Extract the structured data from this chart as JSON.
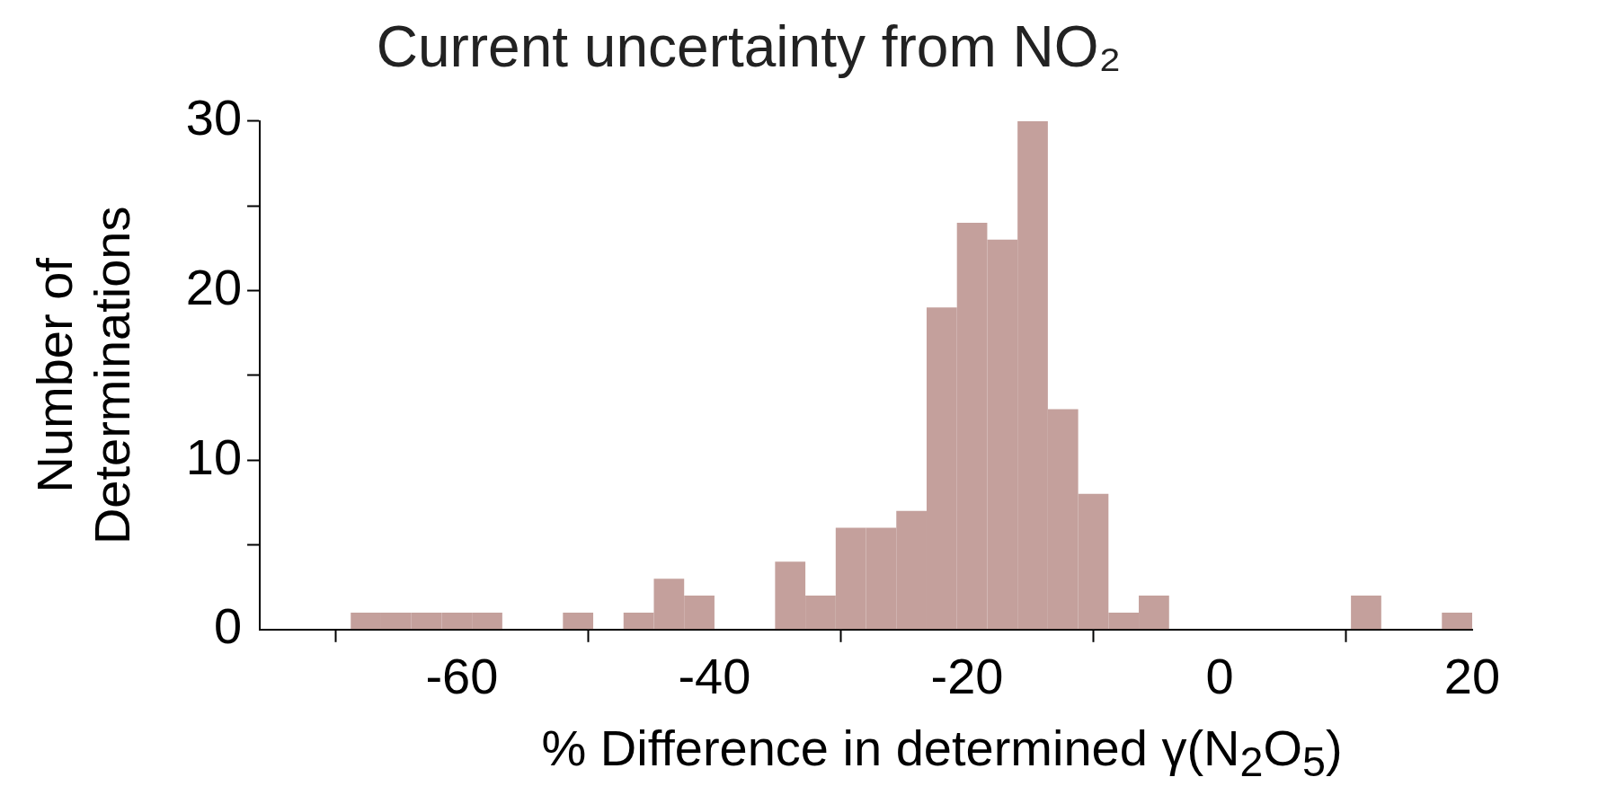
{
  "chart_data": {
    "type": "histogram",
    "title": "Current uncertainty from NO₂",
    "xlabel": "% Difference in determined γ(N$_{2}$O$_{5}$)",
    "ylabel": "Number of\nDeterminations",
    "bins": [
      -76,
      -73.6,
      -71.2,
      -68.8,
      -66.4,
      -64,
      -61.6,
      -59.2,
      -56.8,
      -54.4,
      -52,
      -49.6,
      -47.2,
      -44.8,
      -42.4,
      -40,
      -37.6,
      -35.2,
      -32.8,
      -30.4,
      -28,
      -25.6,
      -23.2,
      -20.8,
      -18.4,
      -16,
      -13.6,
      -11.2,
      -8.8,
      -6.4,
      -4,
      -1.6,
      0.8,
      3.2,
      5.6,
      8,
      10.4,
      12.8,
      15.2,
      17.6,
      20
    ],
    "values": [
      0,
      0,
      0,
      1,
      1,
      1,
      1,
      1,
      0,
      0,
      1,
      0,
      1,
      3,
      2,
      0,
      0,
      4,
      2,
      6,
      6,
      7,
      19,
      24,
      23,
      30,
      13,
      8,
      1,
      2,
      0,
      0,
      0,
      0,
      0,
      0,
      2,
      0,
      0,
      1
    ],
    "color": "#c4a09c",
    "xlim": [
      -76,
      20
    ],
    "xticks": [
      -60,
      -40,
      -20,
      0,
      20
    ],
    "ylim": [
      0,
      30
    ],
    "yticks": [
      0,
      {
        "value": 5,
        "label": null
      },
      10,
      {
        "value": 15,
        "label": null
      },
      20,
      {
        "value": 25,
        "label": null
      },
      30
    ],
    "grid": false,
    "legend": false
  }
}
